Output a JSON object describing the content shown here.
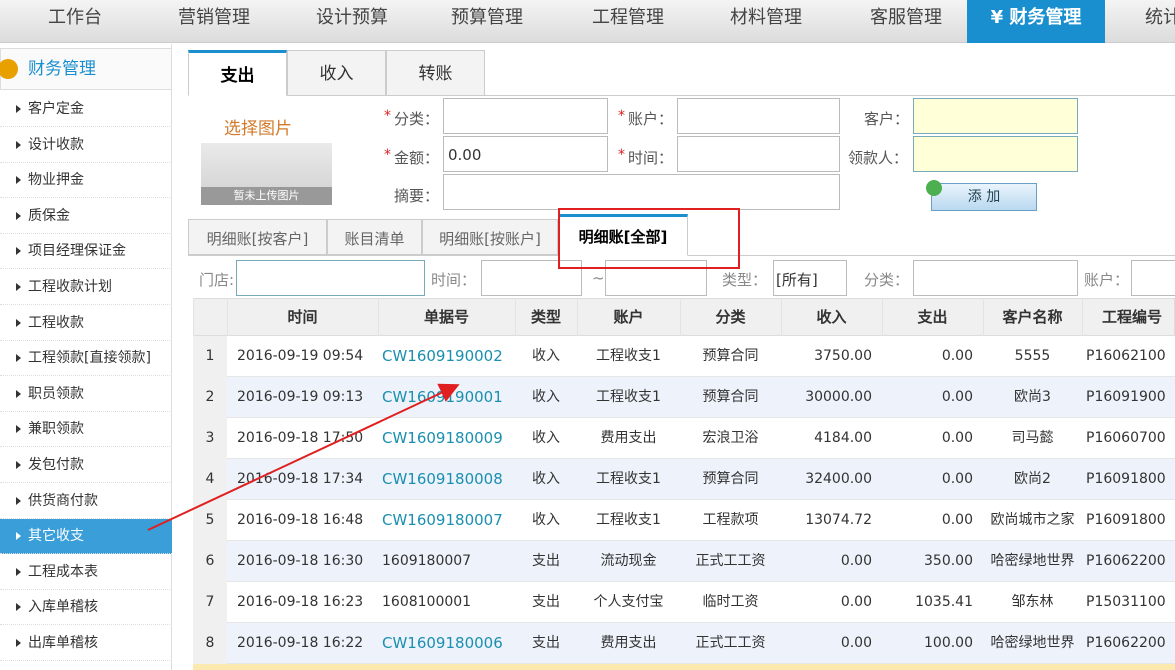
{
  "nav": {
    "items": [
      "工作台",
      "营销管理",
      "设计预算",
      "预算管理",
      "工程管理",
      "材料管理",
      "客服管理",
      "¥ 财务管理",
      "统计"
    ],
    "active": 7
  },
  "sidebar": {
    "title": "财务管理",
    "items": [
      "客户定金",
      "设计收款",
      "物业押金",
      "质保金",
      "项目经理保证金",
      "工程收款计划",
      "工程收款",
      "工程领款[直接领款]",
      "职员领款",
      "兼职领款",
      "发包付款",
      "供货商付款",
      "其它收支",
      "工程成本表",
      "入库单稽核",
      "出库单稽核"
    ],
    "active": 12
  },
  "tabs": {
    "items": [
      "支出",
      "收入",
      "转账"
    ],
    "active": 0
  },
  "form": {
    "image_title": "选择图片",
    "image_placeholder": "暂未上传图片",
    "required_mark": "*",
    "category_label": "分类：",
    "account_label": "账户：",
    "customer_label": "客户：",
    "amount_label": "金额：",
    "amount_value": "0.00",
    "time_label": "时间：",
    "payee_label": "领款人：",
    "summary_label": "摘要：",
    "add_button": "添 加"
  },
  "subtabs": {
    "items": [
      "明细账[按客户]",
      "账目清单",
      "明细账[按账户]",
      "明细账[全部]"
    ],
    "active": 3
  },
  "filters": {
    "store_label": "门店:",
    "time_label": "时间：",
    "range_separator": "~",
    "type_label": "类型：",
    "type_value": "[所有]",
    "category_label": "分类：",
    "account_label": "账户："
  },
  "table": {
    "headers": [
      "时间",
      "单据号",
      "类型",
      "账户",
      "分类",
      "收入",
      "支出",
      "客户名称",
      "工程编号"
    ],
    "rows": [
      [
        "1",
        "2016-09-19 09:54",
        "CW1609190002",
        "收入",
        "工程收支1",
        "预算合同",
        "3750.00",
        "0.00",
        "5555",
        "P16062100"
      ],
      [
        "2",
        "2016-09-19 09:13",
        "CW1609190001",
        "收入",
        "工程收支1",
        "预算合同",
        "30000.00",
        "0.00",
        "欧尚3",
        "P16091900"
      ],
      [
        "3",
        "2016-09-18 17:50",
        "CW1609180009",
        "收入",
        "费用支出",
        "宏浪卫浴",
        "4184.00",
        "0.00",
        "司马懿",
        "P16060700"
      ],
      [
        "4",
        "2016-09-18 17:34",
        "CW1609180008",
        "收入",
        "工程收支1",
        "预算合同",
        "32400.00",
        "0.00",
        "欧尚2",
        "P16091800"
      ],
      [
        "5",
        "2016-09-18 16:48",
        "CW1609180007",
        "收入",
        "工程收支1",
        "工程款项",
        "13074.72",
        "0.00",
        "欧尚城市之家",
        "P16091800"
      ],
      [
        "6",
        "2016-09-18 16:30",
        "1609180007",
        "支出",
        "流动现金",
        "正式工工资",
        "0.00",
        "350.00",
        "哈密绿地世界",
        "P16062200"
      ],
      [
        "7",
        "2016-09-18 16:23",
        "1608100001",
        "支出",
        "个人支付宝",
        "临时工资",
        "0.00",
        "1035.41",
        "邹东林",
        "P15031100"
      ],
      [
        "8",
        "2016-09-18 16:22",
        "CW1609180006",
        "支出",
        "费用支出",
        "正式工工资",
        "0.00",
        "100.00",
        "哈密绿地世界",
        "P16062200"
      ]
    ],
    "linked_rows": [
      0,
      1,
      2,
      3,
      4,
      7
    ]
  }
}
